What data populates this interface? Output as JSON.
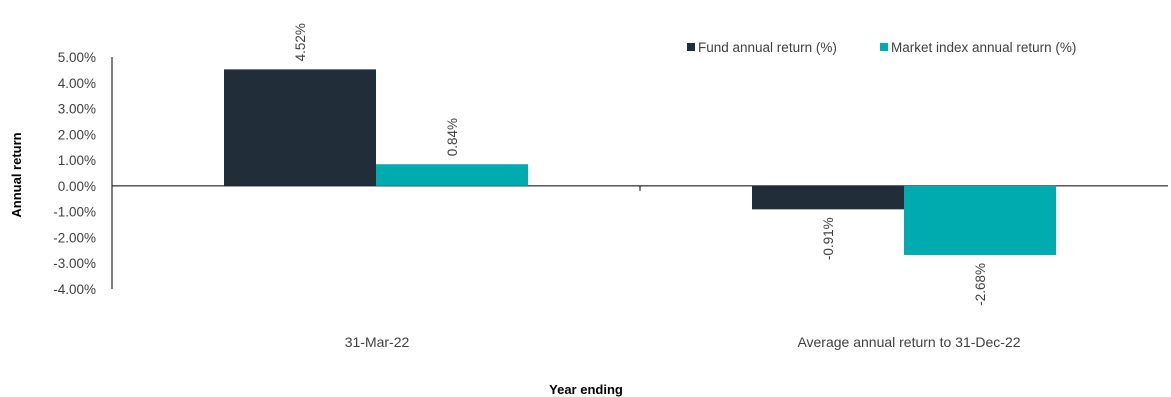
{
  "chart_data": {
    "type": "bar",
    "title": "",
    "xlabel": "Year ending",
    "ylabel": "Annual return",
    "categories": [
      "31-Mar-22",
      "Average annual return to 31-Dec-22"
    ],
    "series": [
      {
        "name": "Fund annual return (%)",
        "values": [
          4.52,
          -0.91
        ],
        "labels": [
          "4.52%",
          "-0.91%"
        ],
        "color": "#222d3a"
      },
      {
        "name": "Market index annual return (%)",
        "values": [
          0.84,
          -2.68
        ],
        "labels": [
          "0.84%",
          "-2.68%"
        ],
        "color": "#00abb0"
      }
    ],
    "ylim": [
      -4,
      5
    ],
    "yticks": [
      5,
      4,
      3,
      2,
      1,
      0,
      -1,
      -2,
      -3,
      -4
    ],
    "ytick_labels": [
      "5.00%",
      "4.00%",
      "3.00%",
      "2.00%",
      "1.00%",
      "0.00%",
      "-1.00%",
      "-2.00%",
      "-3.00%",
      "-4.00%"
    ],
    "legend_position": "top-right",
    "grid": false
  }
}
